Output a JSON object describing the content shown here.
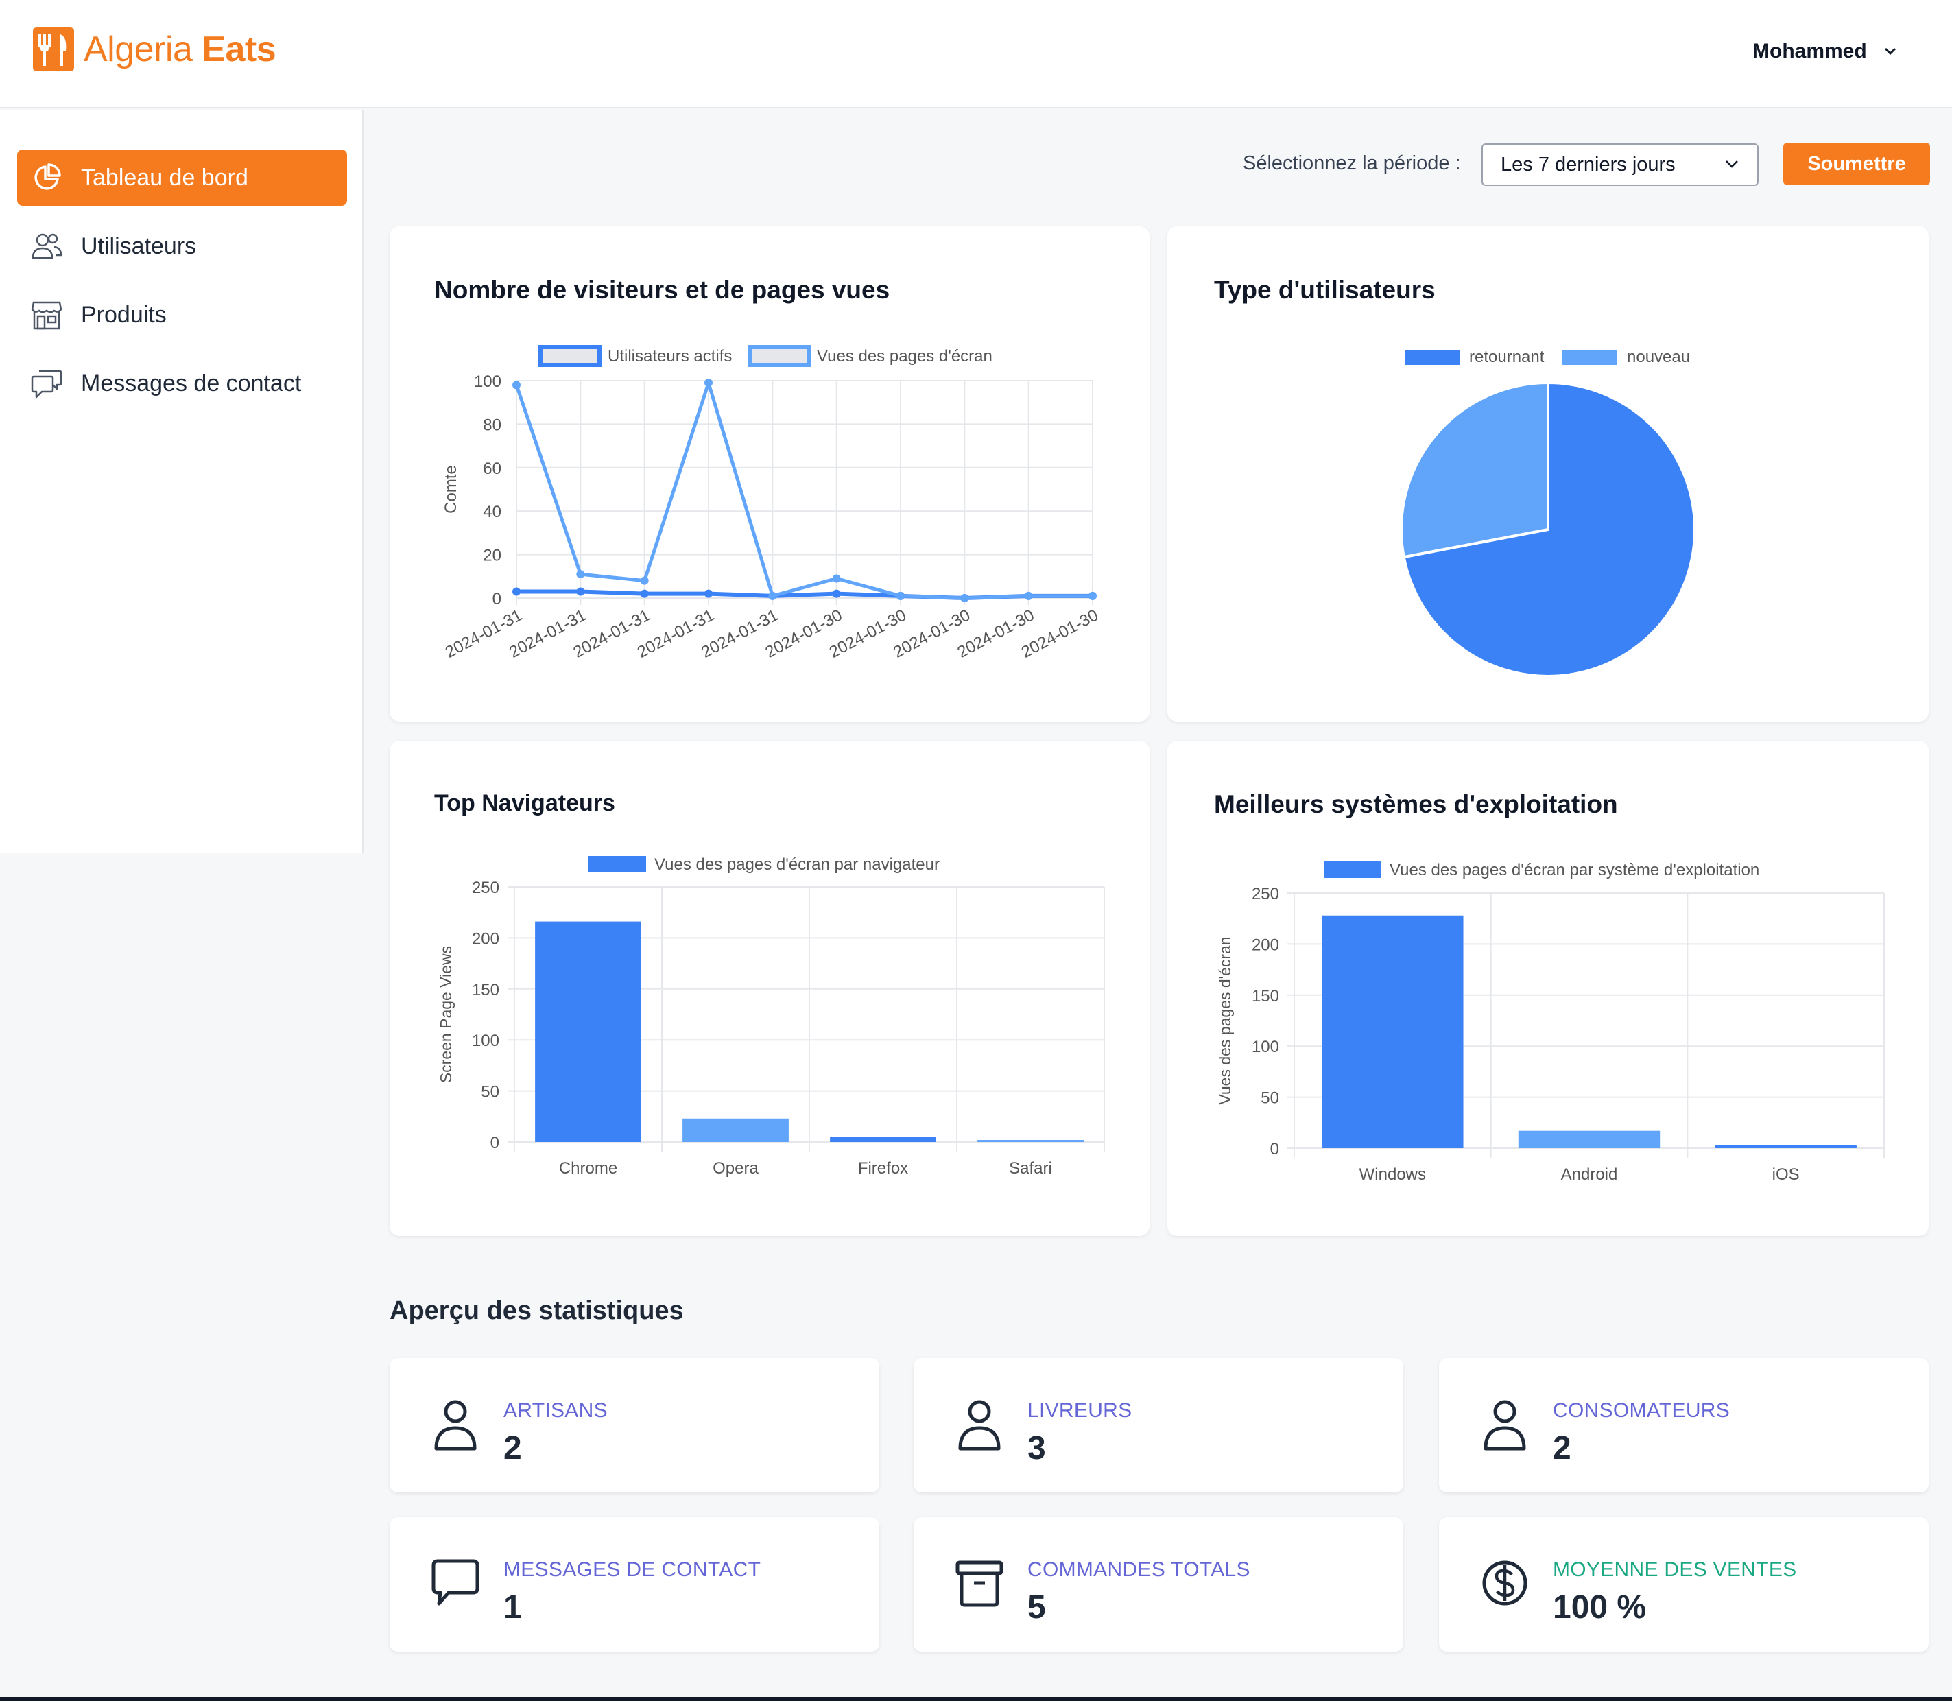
{
  "app": {
    "logo_text_a": "Algeria",
    "logo_text_b": "Eats",
    "user_name": "Mohammed"
  },
  "sidebar": {
    "items": [
      {
        "label": "Tableau de bord",
        "icon": "pie-chart-icon",
        "active": true
      },
      {
        "label": "Utilisateurs",
        "icon": "users-icon",
        "active": false
      },
      {
        "label": "Produits",
        "icon": "store-icon",
        "active": false
      },
      {
        "label": "Messages de contact",
        "icon": "chat-icon",
        "active": false
      }
    ]
  },
  "period": {
    "label": "Sélectionnez la période :",
    "selected": "Les 7 derniers jours",
    "submit": "Soumettre"
  },
  "colors": {
    "accent": "#f67b1f",
    "series_dark": "#3b82f6",
    "series_light": "#60a5fa"
  },
  "cards": {
    "visitors_title": "Nombre de visiteurs et de pages vues",
    "user_type_title": "Type d'utilisateurs",
    "browsers_title": "Top Navigateurs",
    "os_title": "Meilleurs systèmes d'exploitation"
  },
  "chart_data": [
    {
      "type": "line",
      "title": "Nombre de visiteurs et de pages vues",
      "ylabel": "Comte",
      "xlabel": "",
      "ylim": [
        0,
        100
      ],
      "yticks": [
        0,
        20,
        40,
        60,
        80,
        100
      ],
      "x": [
        "2024-01-31",
        "2024-01-31",
        "2024-01-31",
        "2024-01-31",
        "2024-01-31",
        "2024-01-30",
        "2024-01-30",
        "2024-01-30",
        "2024-01-30",
        "2024-01-30"
      ],
      "series": [
        {
          "name": "Utilisateurs actifs",
          "values": [
            3,
            3,
            2,
            2,
            1,
            2,
            1,
            0,
            1,
            1
          ]
        },
        {
          "name": "Vues des pages d'écran",
          "values": [
            98,
            11,
            8,
            99,
            1,
            9,
            1,
            0,
            1,
            1
          ]
        }
      ],
      "grid": true,
      "legend": "top"
    },
    {
      "type": "pie",
      "title": "Type d'utilisateurs",
      "categories": [
        "retournant",
        "nouveau"
      ],
      "values": [
        72,
        28
      ],
      "legend": "top"
    },
    {
      "type": "bar",
      "title": "Top Navigateurs",
      "ylabel": "Screen Page Views",
      "ylim": [
        0,
        250
      ],
      "yticks": [
        0,
        50,
        100,
        150,
        200,
        250
      ],
      "categories": [
        "Chrome",
        "Opera",
        "Firefox",
        "Safari"
      ],
      "series": [
        {
          "name": "Vues des pages d'écran par navigateur",
          "values": [
            216,
            23,
            5,
            2
          ]
        }
      ],
      "grid": true,
      "legend": "top"
    },
    {
      "type": "bar",
      "title": "Meilleurs systèmes d'exploitation",
      "ylabel": "Vues des pages d'écran",
      "ylim": [
        0,
        250
      ],
      "yticks": [
        0,
        50,
        100,
        150,
        200,
        250
      ],
      "categories": [
        "Windows",
        "Android",
        "iOS"
      ],
      "series": [
        {
          "name": "Vues des pages d'écran par système d'exploitation",
          "values": [
            228,
            17,
            3
          ]
        }
      ],
      "grid": true,
      "legend": "top"
    }
  ],
  "stats": {
    "title": "Aperçu des statistiques",
    "items": [
      {
        "label": "ARTISANS",
        "value": "2",
        "icon": "user-icon"
      },
      {
        "label": "LIVREURS",
        "value": "3",
        "icon": "user-icon"
      },
      {
        "label": "CONSOMATEURS",
        "value": "2",
        "icon": "user-icon"
      },
      {
        "label": "MESSAGES DE CONTACT",
        "value": "1",
        "icon": "chat-bubble-icon"
      },
      {
        "label": "COMMANDES TOTALS",
        "value": "5",
        "icon": "archive-box-icon"
      },
      {
        "label": "MOYENNE DES VENTES",
        "value": "100 %",
        "icon": "dollar-circle-icon"
      }
    ]
  }
}
